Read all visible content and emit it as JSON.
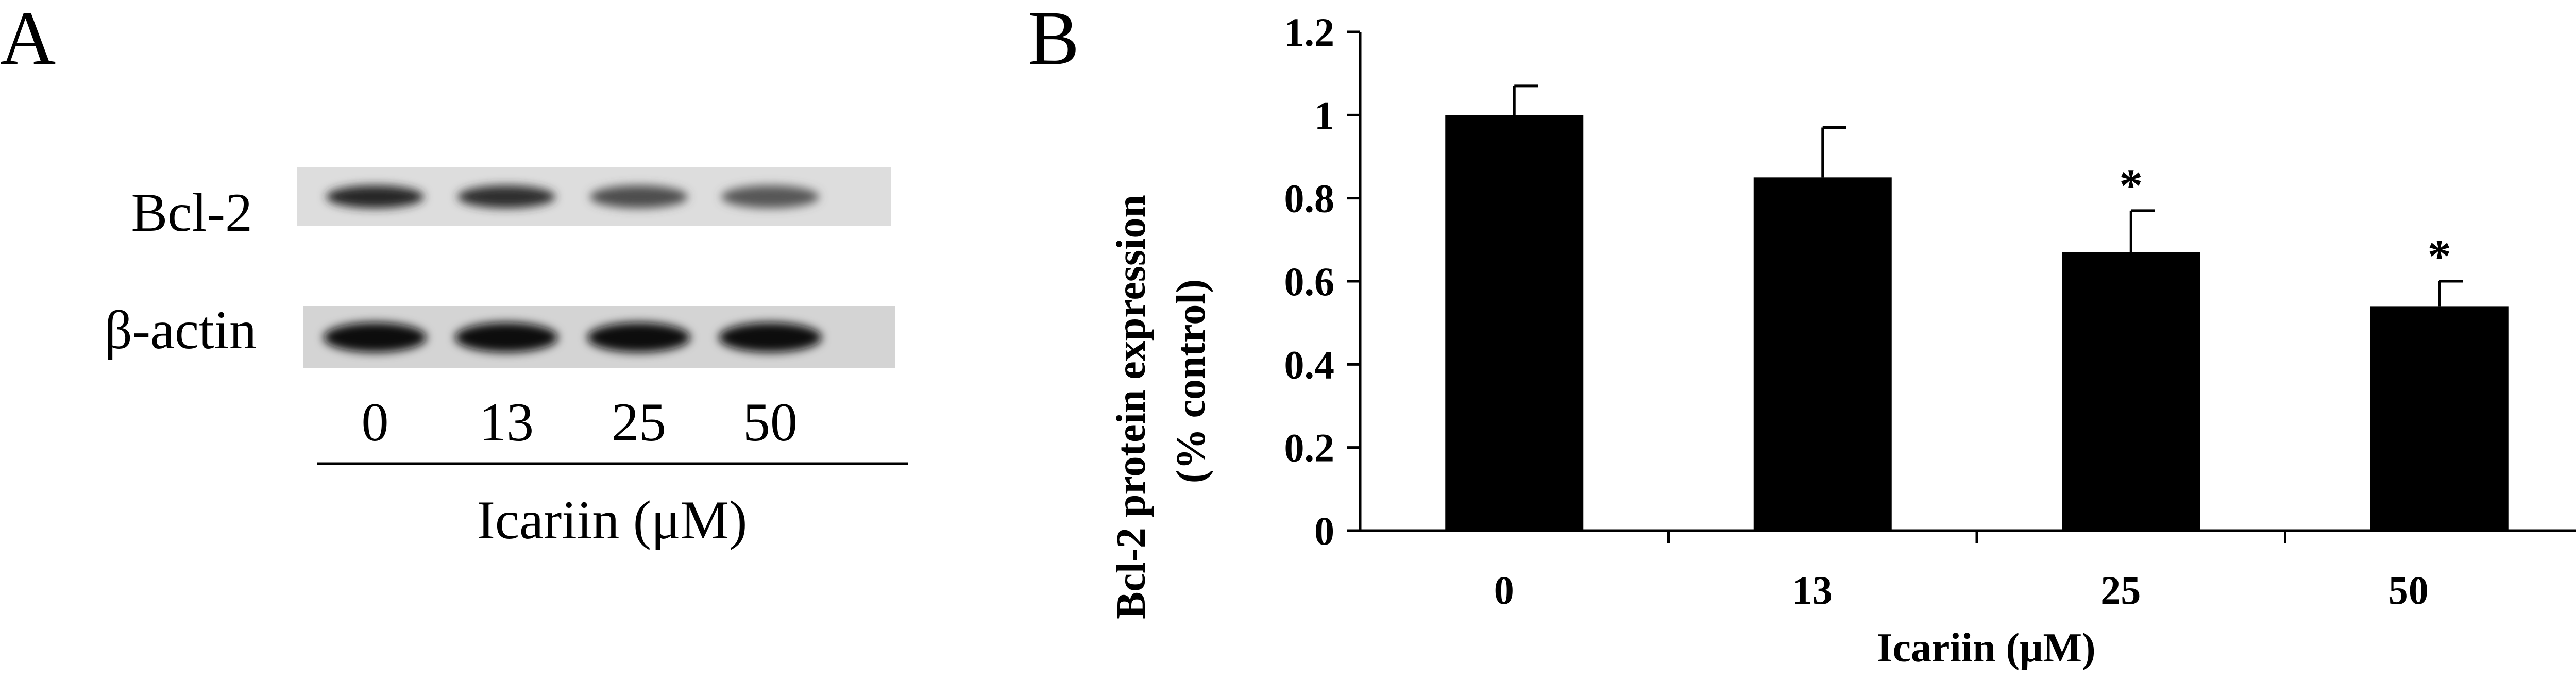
{
  "panel_a": {
    "letter": "A",
    "rows": [
      {
        "label": "Bcl-2",
        "band_intensity": [
          0.85,
          0.82,
          0.7,
          0.66
        ]
      },
      {
        "label": "β-actin",
        "band_intensity": [
          0.95,
          0.95,
          0.95,
          0.95
        ]
      }
    ],
    "lanes": [
      "0",
      "13",
      "25",
      "50"
    ],
    "xlabel": "Icariin (μM)"
  },
  "panel_b": {
    "letter": "B"
  },
  "chart_data": {
    "type": "bar",
    "title": "",
    "categories": [
      "0",
      "13",
      "25",
      "50"
    ],
    "values": [
      1.0,
      0.85,
      0.67,
      0.54
    ],
    "errors": [
      0.07,
      0.12,
      0.1,
      0.06
    ],
    "significance": [
      "",
      "",
      "*",
      "*"
    ],
    "xlabel": "Icariin (μM)",
    "ylabel_line1": "Bcl-2 protein expression",
    "ylabel_line2": "(% control)",
    "yticks": [
      "0",
      "0.2",
      "0.4",
      "0.6",
      "0.8",
      "1",
      "1.2"
    ],
    "ytick_values": [
      0,
      0.2,
      0.4,
      0.6,
      0.8,
      1.0,
      1.2
    ],
    "ylim": [
      0,
      1.2
    ],
    "grid": false,
    "legend": "none",
    "bar_color": "#000000"
  }
}
